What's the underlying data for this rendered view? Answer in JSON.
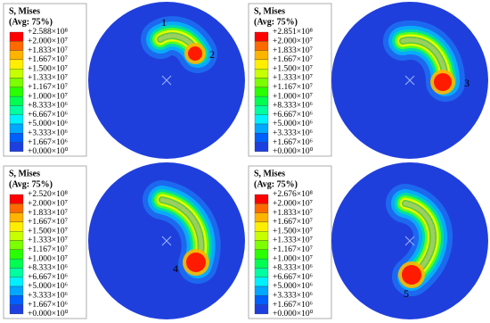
{
  "panels": [
    {
      "legend": {
        "title": "S, Mises",
        "subtitle": "(Avg: 75%)",
        "labels": [
          "+2.588×10⁸",
          "+2.000×10⁷",
          "+1.833×10⁷",
          "+1.667×10⁷",
          "+1.500×10⁷",
          "+1.333×10⁷",
          "+1.167×10⁷",
          "+1.000×10⁷",
          "+8.333×10⁶",
          "+6.667×10⁶",
          "+5.000×10⁶",
          "+3.333×10⁶",
          "+1.667×10⁶",
          "+0.000×10⁰"
        ]
      },
      "markers": [
        "1",
        "2"
      ]
    },
    {
      "legend": {
        "title": "S, Mises",
        "subtitle": "(Avg: 75%)",
        "labels": [
          "+2.851×10⁸",
          "+2.000×10⁷",
          "+1.833×10⁷",
          "+1.667×10⁷",
          "+1.500×10⁷",
          "+1.333×10⁷",
          "+1.167×10⁷",
          "+1.000×10⁷",
          "+8.333×10⁶",
          "+6.667×10⁶",
          "+5.000×10⁶",
          "+3.333×10⁶",
          "+1.667×10⁶",
          "+0.000×10⁰"
        ]
      },
      "markers": [
        "3"
      ]
    },
    {
      "legend": {
        "title": "S, Mises",
        "subtitle": "(Avg: 75%)",
        "labels": [
          "+2.520×10⁸",
          "+2.000×10⁷",
          "+1.833×10⁷",
          "+1.667×10⁷",
          "+1.500×10⁷",
          "+1.333×10⁷",
          "+1.167×10⁷",
          "+1.000×10⁷",
          "+8.333×10⁶",
          "+6.667×10⁶",
          "+5.000×10⁶",
          "+3.333×10⁶",
          "+1.667×10⁶",
          "+0.000×10⁰"
        ]
      },
      "markers": [
        "4"
      ]
    },
    {
      "legend": {
        "title": "S, Mises",
        "subtitle": "(Avg: 75%)",
        "labels": [
          "+2.676×10⁸",
          "+2.000×10⁷",
          "+1.833×10⁷",
          "+1.667×10⁷",
          "+1.500×10⁷",
          "+1.333×10⁷",
          "+1.167×10⁷",
          "+1.000×10⁷",
          "+8.333×10⁶",
          "+6.667×10⁶",
          "+5.000×10⁶",
          "+3.333×10⁶",
          "+1.667×10⁶",
          "+0.000×10⁰"
        ]
      },
      "markers": [
        "5"
      ]
    }
  ]
}
